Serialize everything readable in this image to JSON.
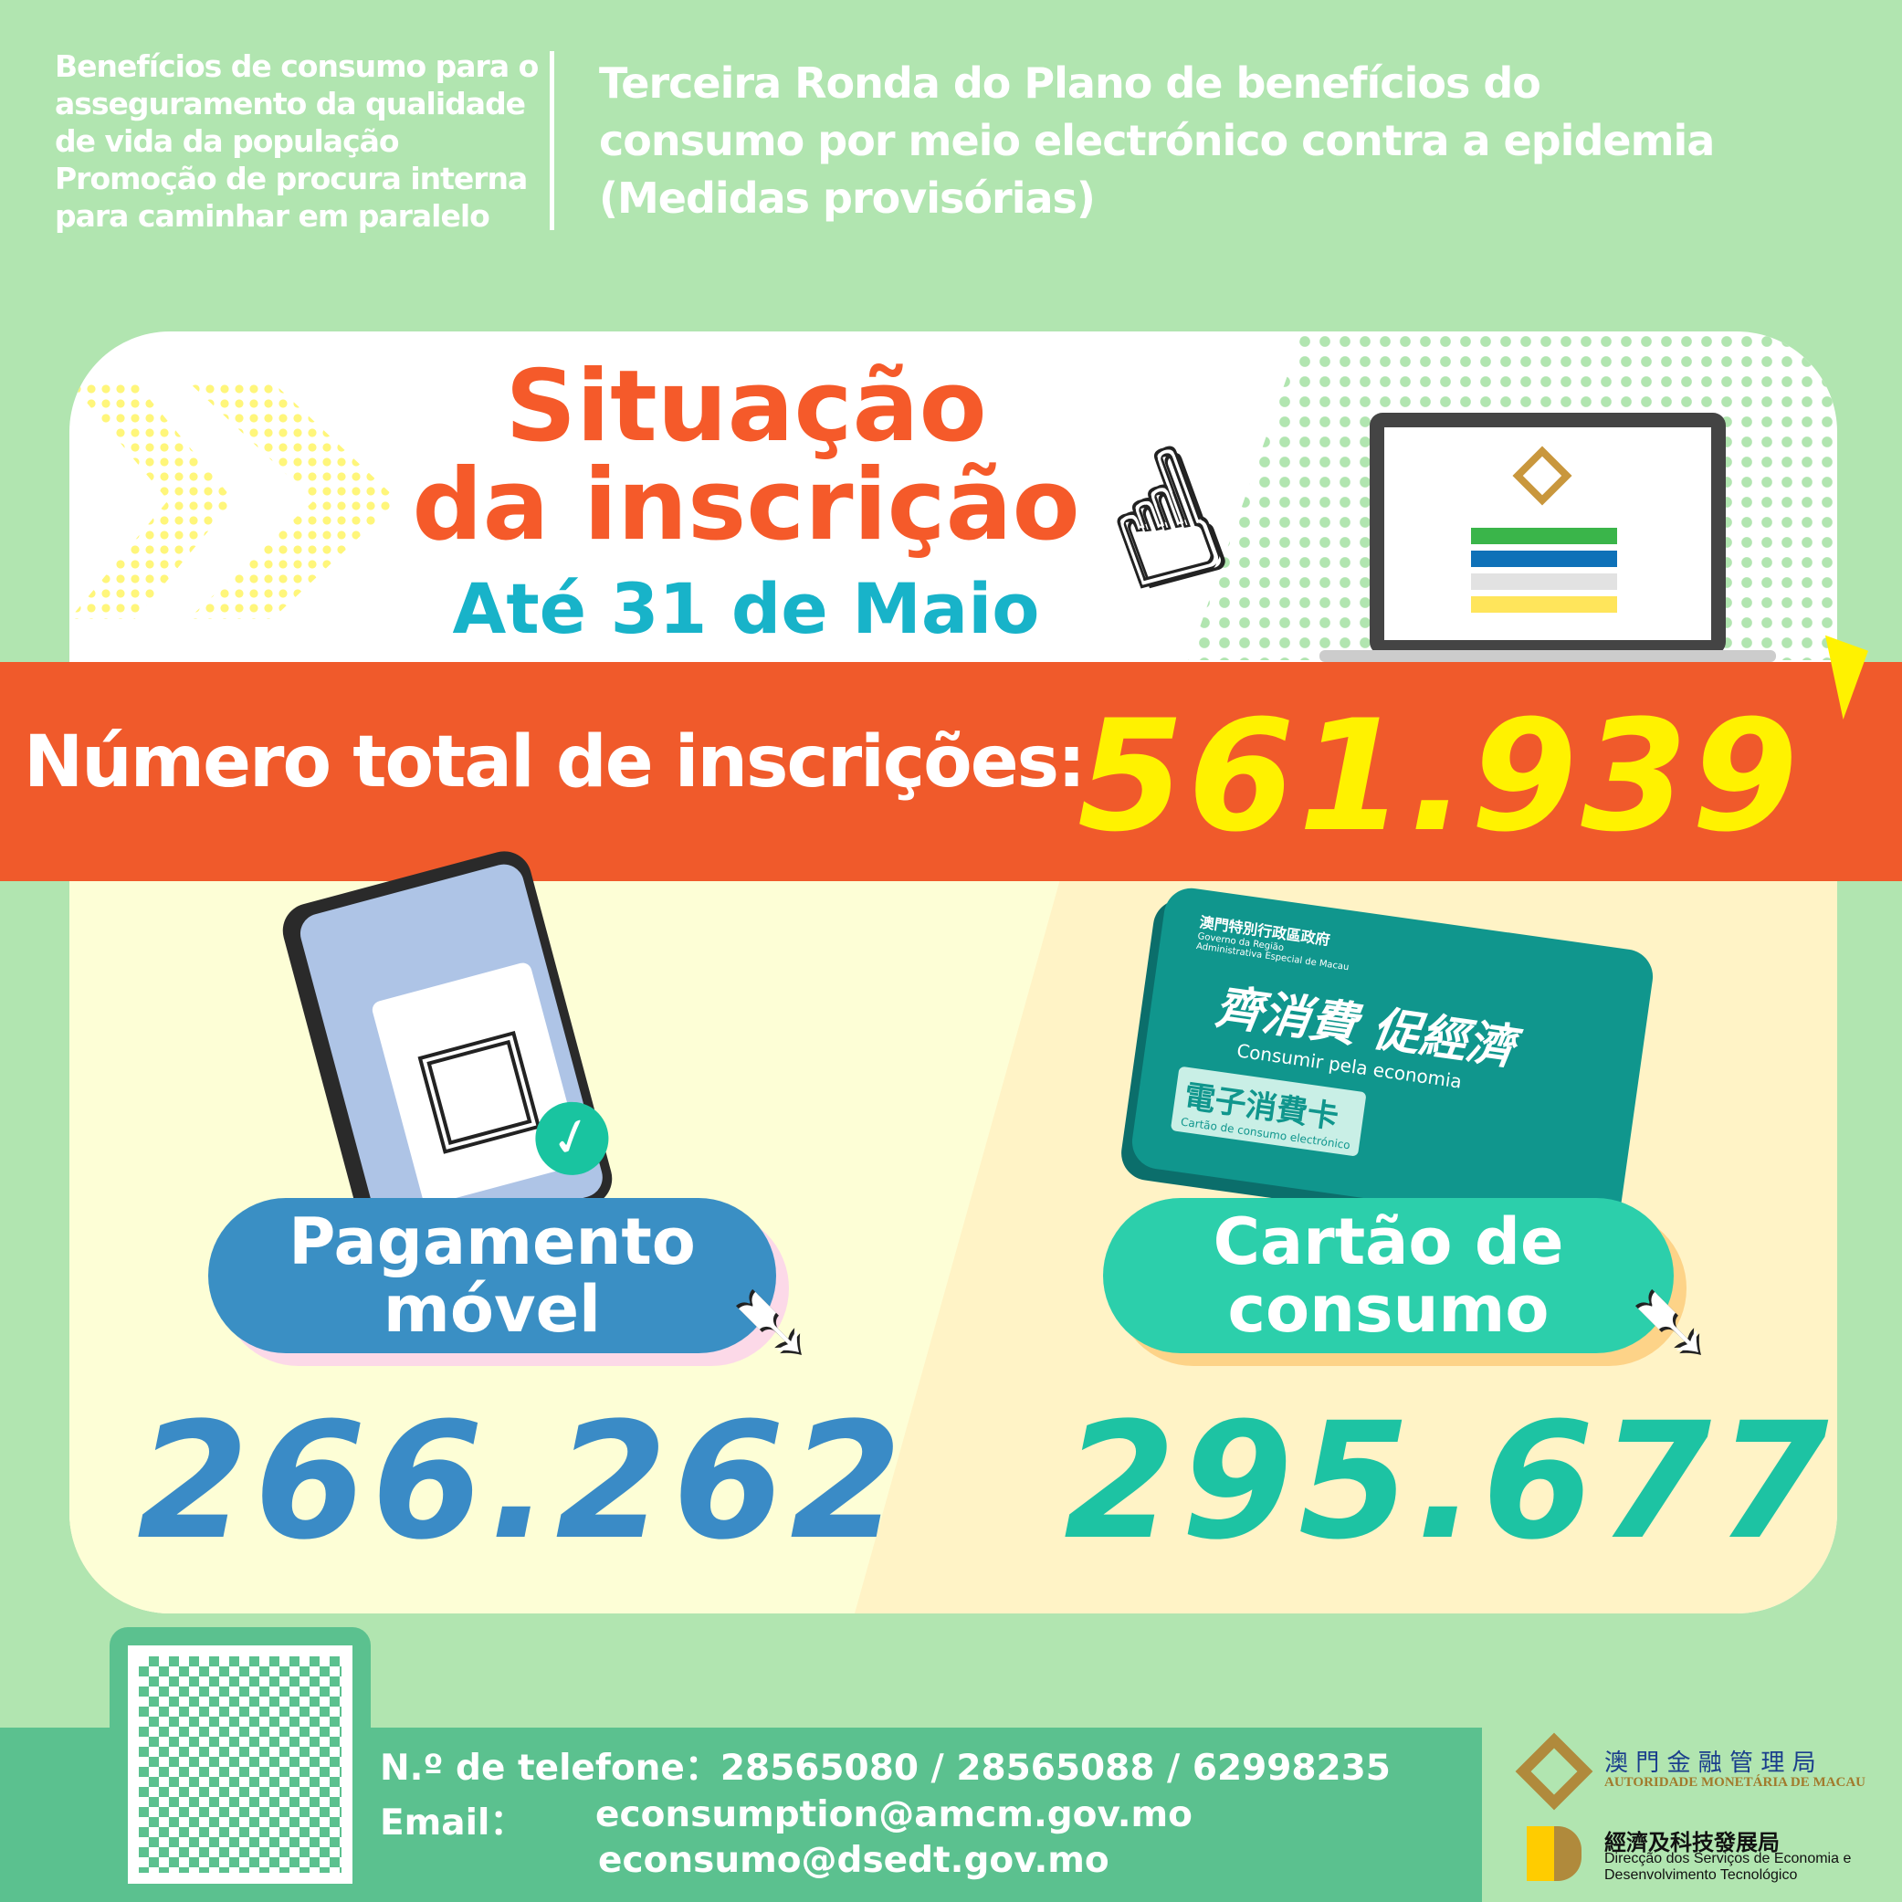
{
  "header": {
    "left_lines": [
      "Benefícios de consumo para o",
      "asseguramento da qualidade",
      "de vida da população",
      "Promoção de procura interna",
      "para caminhar em paralelo"
    ],
    "title_lines": [
      "Terceira Ronda do Plano de benefícios do",
      "consumo por meio electrónico contra a epidemia",
      "(Medidas provisórias)"
    ]
  },
  "hero": {
    "title_line1": "Situação",
    "title_line2": "da inscrição",
    "deadline": "Até 31 de Maio"
  },
  "total": {
    "label": "Número total de inscrições:",
    "value": "561.939"
  },
  "mobile": {
    "label_line1": "Pagamento",
    "label_line2": "móvel",
    "value": "266.262"
  },
  "card": {
    "label_line1": "Cartão de",
    "label_line2": "consumo",
    "value": "295.677",
    "card_gov": "澳門特別行政區政府",
    "card_gov_pt": "Governo da Região Administrativa Especial de Macau",
    "card_slogan": "齊消費 促經濟",
    "card_slogan_pt": "Consumir pela economia",
    "card_name": "電子消費卡",
    "card_name_pt": "Cartão de consumo electrónico"
  },
  "footer": {
    "phone_label": "N.º de telefone：",
    "phones": "28565080 / 28565088 / 62998235",
    "email_label": "Email：",
    "emails": [
      "econsumption@amcm.gov.mo",
      "econsumo@dsedt.gov.mo"
    ]
  },
  "logos": {
    "amcm_zh": "澳 門 金 融 管 理 局",
    "amcm_pt": "AUTORIDADE MONETÁRIA DE MACAU",
    "dsedt_zh": "經濟及科技發展局",
    "dsedt_pt_1": "Direcção dos Serviços de Economia e",
    "dsedt_pt_2": "Desenvolvimento Tecnológico"
  },
  "colors": {
    "background": "#b1e5b0",
    "orange": "#f05a2b",
    "yellow": "#fff200",
    "blue": "#3a8fc4",
    "teal": "#2ccfab",
    "footer": "#5bc18f"
  }
}
